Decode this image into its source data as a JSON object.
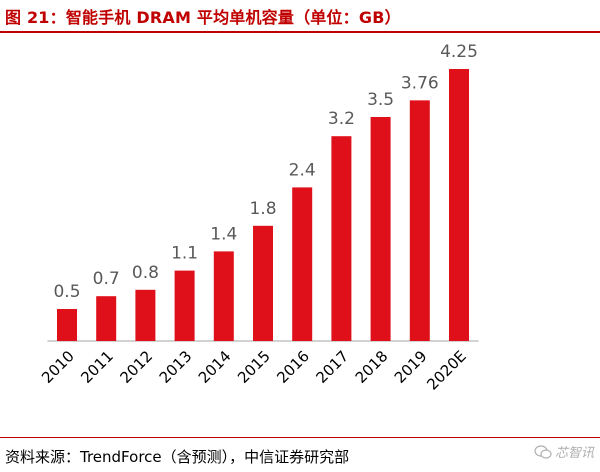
{
  "title": "图 21：智能手机 DRAM 平均单机容量（单位：GB）",
  "source": "资料来源：TrendForce（含预测），中信证券研究部",
  "watermark": "芯智讯",
  "colors": {
    "accent": "#c00000",
    "bar": "#e0101a",
    "label": "#595959",
    "axis": "#a6a6a6"
  },
  "chart_data": {
    "type": "bar",
    "categories": [
      "2010",
      "2011",
      "2012",
      "2013",
      "2014",
      "2015",
      "2016",
      "2017",
      "2018",
      "2019",
      "2020E"
    ],
    "values": [
      0.5,
      0.7,
      0.8,
      1.1,
      1.4,
      1.8,
      2.4,
      3.2,
      3.5,
      3.76,
      4.25
    ],
    "value_labels": [
      "0.5",
      "0.7",
      "0.8",
      "1.1",
      "1.4",
      "1.8",
      "2.4",
      "3.2",
      "3.5",
      "3.76",
      "4.25"
    ],
    "ylim": [
      0,
      4.5
    ],
    "grid": false,
    "legend": "none",
    "xlabel": "",
    "ylabel": ""
  }
}
